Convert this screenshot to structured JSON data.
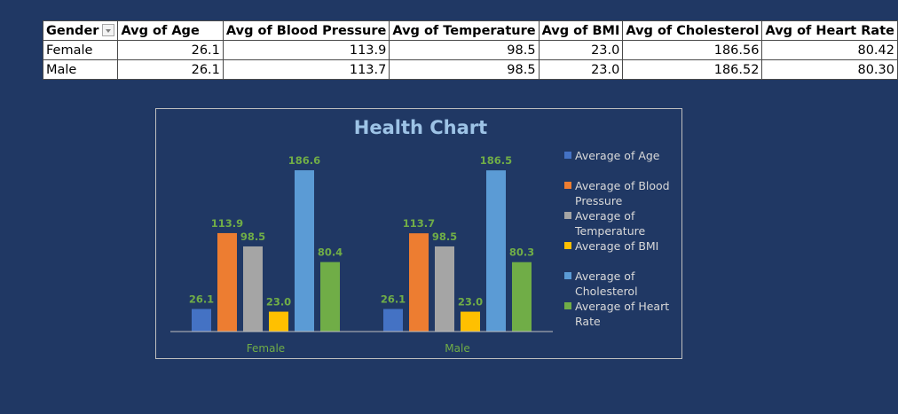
{
  "pivot_table": {
    "headers": [
      "Gender",
      "Avg of Age",
      "Avg of Blood Pressure",
      "Avg of Temperature",
      "Avg of BMI",
      "Avg of Cholesterol",
      "Avg of Heart Rate"
    ],
    "rows": [
      {
        "gender": "Female",
        "age": "26.1",
        "bp": "113.9",
        "temp": "98.5",
        "bmi": "23.0",
        "chol": "186.56",
        "hr": "80.42"
      },
      {
        "gender": "Male",
        "age": "26.1",
        "bp": "113.7",
        "temp": "98.5",
        "bmi": "23.0",
        "chol": "186.52",
        "hr": "80.30"
      }
    ]
  },
  "chart_data": {
    "type": "bar",
    "title": "Health Chart",
    "categories": [
      "Female",
      "Male"
    ],
    "series": [
      {
        "name": "Average of Age",
        "color": "#4472c4",
        "values": [
          26.1,
          26.1
        ],
        "labels": [
          "26.1",
          "26.1"
        ]
      },
      {
        "name": "Average of Blood Pressure",
        "color": "#ed7d31",
        "values": [
          113.9,
          113.7
        ],
        "labels": [
          "113.9",
          "113.7"
        ]
      },
      {
        "name": "Average of Temperature",
        "color": "#a5a5a5",
        "values": [
          98.5,
          98.5
        ],
        "labels": [
          "98.5",
          "98.5"
        ]
      },
      {
        "name": "Average of BMI",
        "color": "#ffc000",
        "values": [
          23.0,
          23.0
        ],
        "labels": [
          "23.0",
          "23.0"
        ]
      },
      {
        "name": "Average of Cholesterol",
        "color": "#5b9bd5",
        "values": [
          186.6,
          186.5
        ],
        "labels": [
          "186.6",
          "186.5"
        ]
      },
      {
        "name": "Average of Heart Rate",
        "color": "#70ad47",
        "values": [
          80.4,
          80.3
        ],
        "labels": [
          "80.4",
          "80.3"
        ]
      }
    ],
    "ylim": [
      0,
      200
    ],
    "grid": false,
    "legend_position": "right",
    "colors": {
      "background": "#203864",
      "title": "#9dc3e6",
      "data_labels": "#70ad47",
      "category_labels": "#70ad47",
      "axis_line": "#bfbfbf",
      "legend_text": "#d9d9d9"
    }
  }
}
